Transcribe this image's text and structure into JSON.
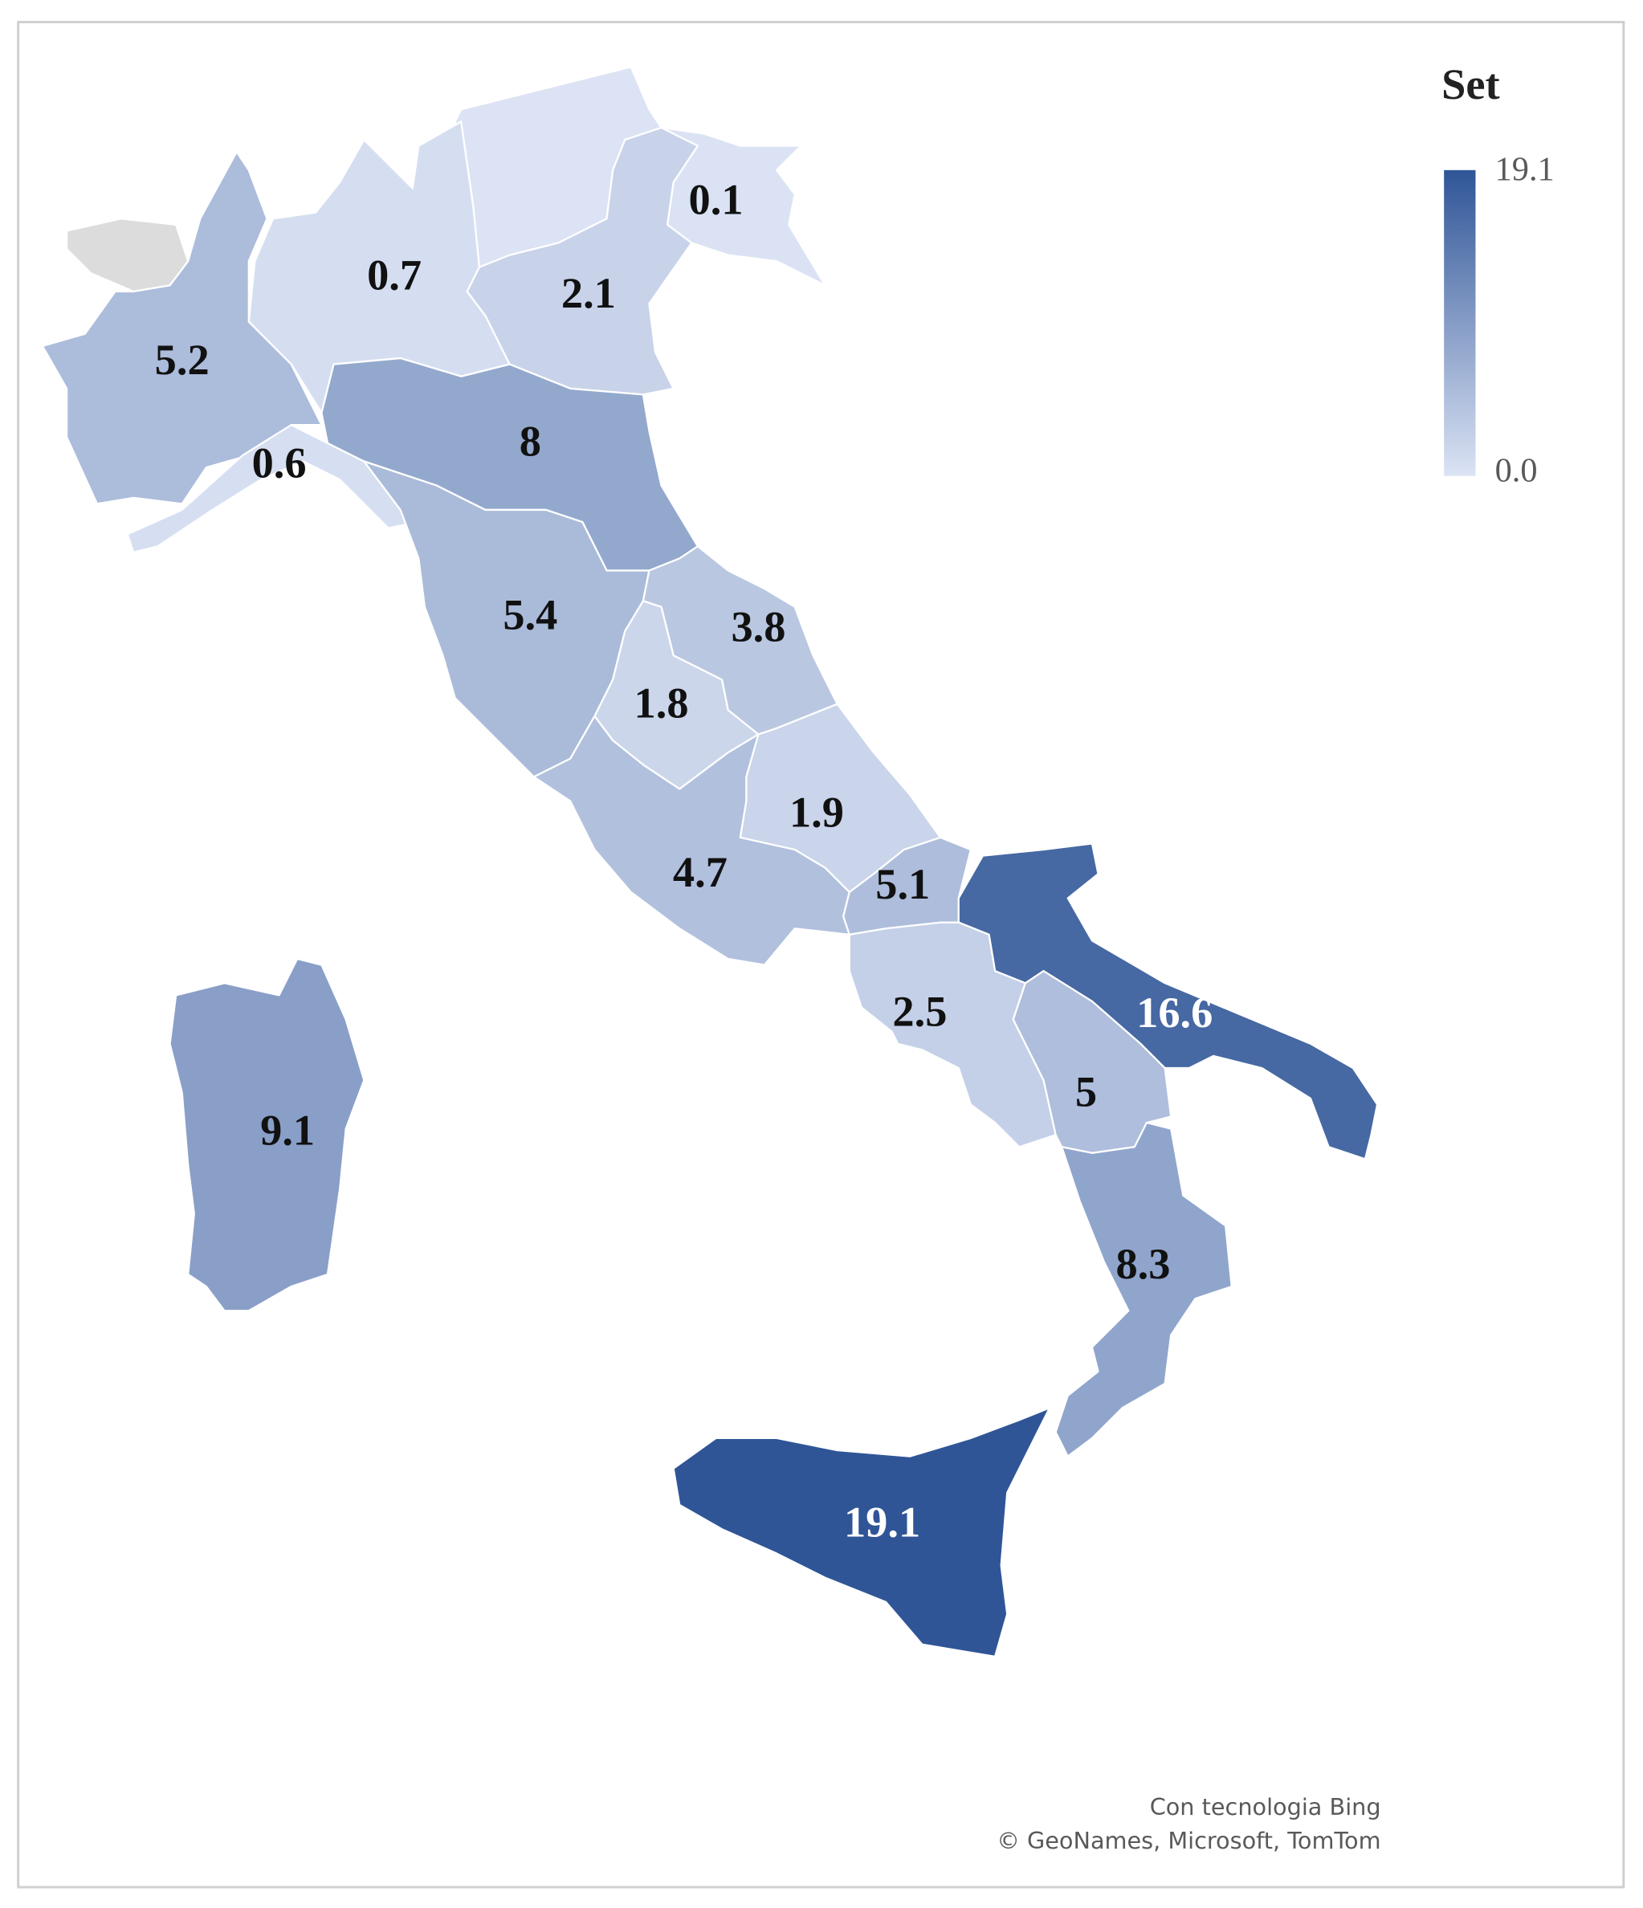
{
  "chart_data": {
    "type": "choropleth",
    "legend_title": "Set",
    "values": [
      0.1,
      0.7,
      2.1,
      5.2,
      0.6,
      8,
      5.4,
      3.8,
      1.8,
      1.9,
      4.7,
      5.1,
      16.6,
      2.5,
      5,
      8.3,
      9.1,
      19.1
    ],
    "clim": [
      0,
      19.1
    ],
    "cticks": [
      {
        "value": 0,
        "label": "0.0"
      },
      19.1
    ],
    "colors": [
      "#dbe3f4",
      "#2f5597"
    ],
    "attribution": [
      "Con tecnologia Bing",
      "© GeoNames, Microsoft, TomTom"
    ]
  }
}
